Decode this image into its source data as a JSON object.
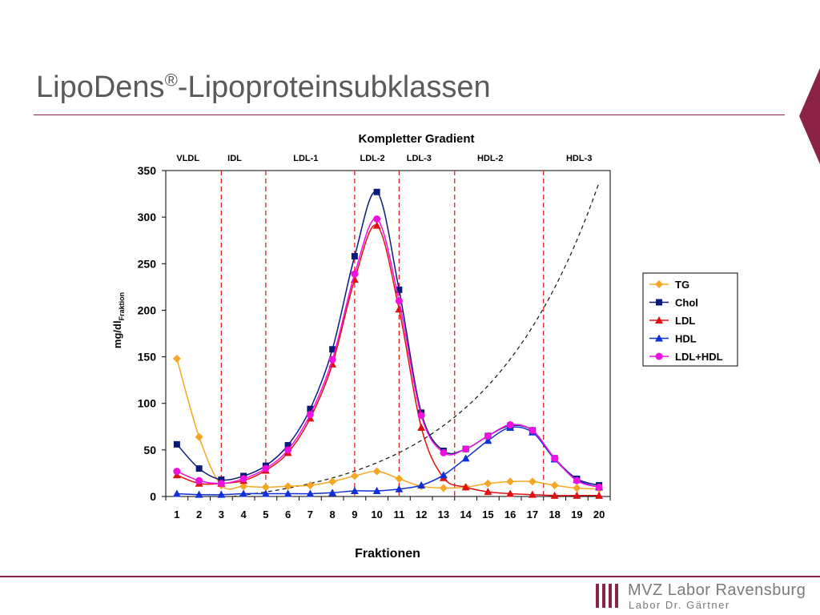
{
  "slide": {
    "title": "LipoDens",
    "title_sup": "®",
    "title_rest": "-Lipoproteinsubklassen"
  },
  "logo": {
    "name": "MVZ Labor Ravensburg",
    "subtitle": "Labor Dr. Gärtner"
  },
  "colors": {
    "brand": "#8b2346",
    "divider": "#e02020",
    "TG": "#f5a623",
    "Chol": "#0a1a7a",
    "LDL": "#e01010",
    "HDL": "#1030d8",
    "LDL+HDL": "#f010e0"
  },
  "chart_data": {
    "type": "line",
    "title": "Kompletter Gradient",
    "xlabel": "Fraktionen",
    "ylabel": "mg/dl",
    "ylabel_sub": "Fraktion",
    "x": [
      1,
      2,
      3,
      4,
      5,
      6,
      7,
      8,
      9,
      10,
      11,
      12,
      13,
      14,
      15,
      16,
      17,
      18,
      19,
      20
    ],
    "ylim": [
      0,
      350
    ],
    "yticks": [
      0,
      50,
      100,
      150,
      200,
      250,
      300,
      350
    ],
    "grid": false,
    "legend": "right",
    "series": [
      {
        "name": "TG",
        "marker": "diamond",
        "values": [
          148,
          64,
          12,
          11,
          10,
          11,
          12,
          16,
          22,
          27,
          19,
          11,
          9,
          10,
          14,
          16,
          16,
          12,
          9,
          8
        ]
      },
      {
        "name": "Chol",
        "marker": "square",
        "values": [
          56,
          30,
          18,
          22,
          33,
          55,
          94,
          158,
          258,
          327,
          222,
          90,
          49,
          51,
          65,
          76,
          71,
          41,
          19,
          12
        ]
      },
      {
        "name": "LDL",
        "marker": "triangle",
        "values": [
          23,
          14,
          14,
          17,
          28,
          47,
          84,
          142,
          233,
          291,
          201,
          74,
          20,
          10,
          5,
          3,
          2,
          1,
          1,
          1
        ]
      },
      {
        "name": "HDL",
        "marker": "triangle",
        "values": [
          3,
          2,
          2,
          3,
          3,
          3,
          3,
          4,
          6,
          6,
          8,
          12,
          23,
          41,
          60,
          74,
          69,
          40,
          18,
          10
        ]
      },
      {
        "name": "LDL+HDL",
        "marker": "circle",
        "values": [
          27,
          17,
          14,
          19,
          30,
          50,
          88,
          147,
          239,
          298,
          210,
          87,
          47,
          51,
          65,
          77,
          71,
          41,
          17,
          10
        ]
      }
    ],
    "dividers": [
      3,
      5,
      9,
      11,
      13.5,
      17.5
    ],
    "region_labels": [
      {
        "label": "VLDL",
        "x": 1.5
      },
      {
        "label": "IDL",
        "x": 3.6
      },
      {
        "label": "LDL-1",
        "x": 6.8
      },
      {
        "label": "LDL-2",
        "x": 9.8
      },
      {
        "label": "LDL-3",
        "x": 11.9
      },
      {
        "label": "HDL-2",
        "x": 15.1
      },
      {
        "label": "HDL-3",
        "x": 19.1
      }
    ]
  }
}
